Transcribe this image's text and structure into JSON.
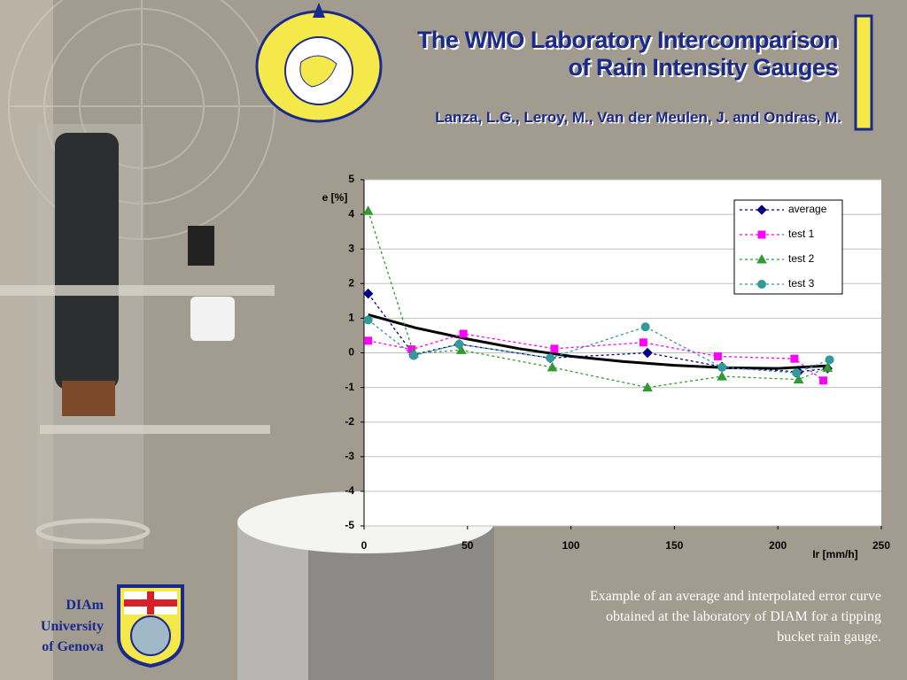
{
  "slide": {
    "title": [
      "The WMO Laboratory Intercomparison",
      "of Rain Intensity Gauges"
    ],
    "authors": "Lanza, L.G., Leroy, M., Van der Meulen, J. and Ondras, M.",
    "caption": [
      "Example of an average and interpolated error curve",
      "obtained at the laboratory of DIAM for a tipping",
      "bucket rain gauge."
    ],
    "institution": [
      "DIAm",
      "University",
      "of Genova"
    ]
  },
  "chart_data": {
    "type": "line",
    "x_label": "Ir [mm/h]",
    "y_label": "e [%]",
    "xlim": [
      0,
      250
    ],
    "xticks": [
      0,
      50,
      100,
      150,
      200,
      250
    ],
    "ylim": [
      -5,
      5
    ],
    "yticks": [
      -5,
      -4,
      -3,
      -2,
      -1,
      0,
      1,
      2,
      3,
      4,
      5
    ],
    "grid": true,
    "legend": "upper right",
    "series": [
      {
        "name": "average",
        "color": "#000080",
        "marker": "diamond",
        "x": [
          2,
          24,
          46,
          90,
          137,
          173,
          210,
          224
        ],
        "values": [
          1.71,
          -0.05,
          0.25,
          -0.15,
          0.0,
          -0.4,
          -0.55,
          -0.45
        ]
      },
      {
        "name": "test 1",
        "color": "#ff00ff",
        "marker": "square",
        "x": [
          2,
          23,
          48,
          92,
          135,
          171,
          208,
          222
        ],
        "values": [
          0.35,
          0.1,
          0.55,
          0.12,
          0.3,
          -0.1,
          -0.17,
          -0.8
        ]
      },
      {
        "name": "test 2",
        "color": "#339933",
        "marker": "triangle",
        "x": [
          2,
          24,
          47,
          91,
          137,
          173,
          210,
          224
        ],
        "values": [
          4.1,
          -0.02,
          0.08,
          -0.42,
          -1.0,
          -0.68,
          -0.77,
          -0.43
        ]
      },
      {
        "name": "test 3",
        "color": "#339999",
        "marker": "circle",
        "x": [
          2,
          24,
          46,
          90,
          136,
          173,
          209,
          225
        ],
        "values": [
          0.95,
          -0.08,
          0.25,
          -0.15,
          0.75,
          -0.42,
          -0.58,
          -0.2
        ]
      }
    ],
    "trend": {
      "color": "#000000",
      "x": [
        2,
        25,
        50,
        75,
        100,
        125,
        150,
        175,
        200,
        225
      ],
      "values": [
        1.1,
        0.72,
        0.4,
        0.12,
        -0.1,
        -0.25,
        -0.36,
        -0.43,
        -0.45,
        -0.37
      ]
    }
  }
}
